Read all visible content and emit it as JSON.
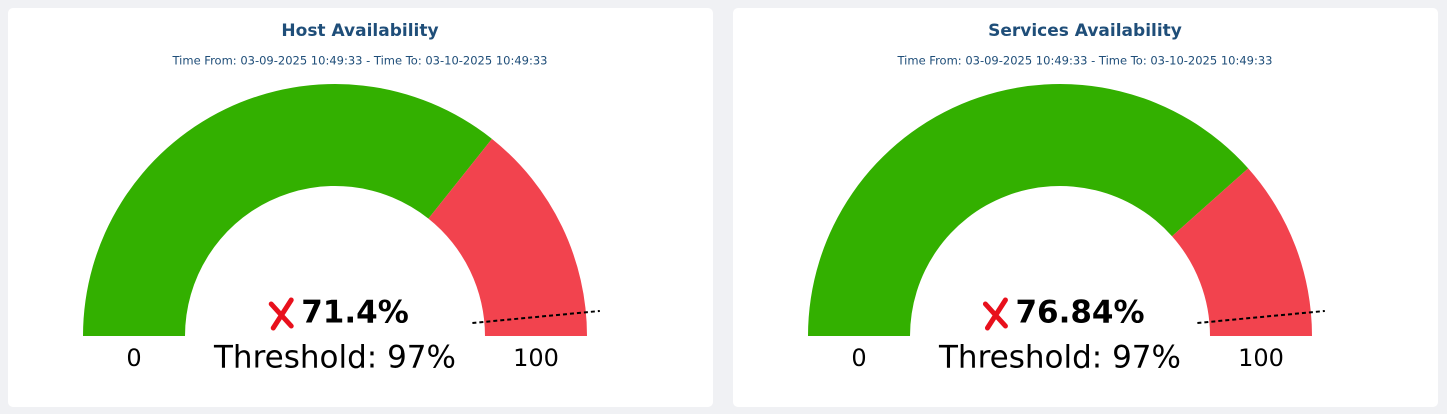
{
  "chart_data": [
    {
      "type": "gauge",
      "title": "Host Availability",
      "subtitle": "Time From: 03-09-2025 10:49:33 - Time To: 03-10-2025 10:49:33",
      "values": [
        71.4
      ],
      "value_labels": [
        "71.4%"
      ],
      "threshold": 97,
      "threshold_label": "Threshold: 97%",
      "ylim": [
        0,
        100
      ],
      "yticks": [
        0,
        100
      ],
      "color": "#33b000",
      "remainder_color": "#f2434e"
    },
    {
      "type": "gauge",
      "title": "Services Availability",
      "subtitle": "Time From: 03-09-2025 10:49:33 - Time To: 03-10-2025 10:49:33",
      "values": [
        76.84
      ],
      "value_labels": [
        "76.84%"
      ],
      "threshold": 97,
      "threshold_label": "Threshold: 97%",
      "ylim": [
        0,
        100
      ],
      "yticks": [
        0,
        100
      ],
      "color": "#33b000",
      "remainder_color": "#f2434e"
    }
  ]
}
